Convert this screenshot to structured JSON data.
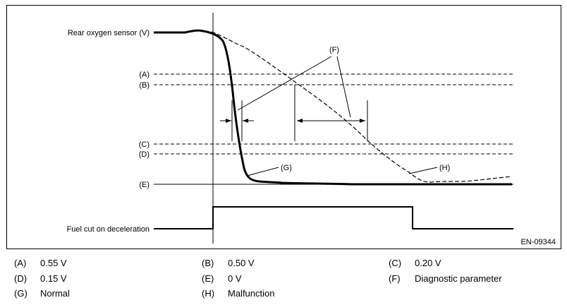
{
  "diagram": {
    "signal_labels": {
      "rear_o2": "Rear oxygen sensor (V)",
      "fuel_cut": "Fuel cut on deceleration"
    },
    "level_labels": [
      "(A)",
      "(B)",
      "(C)",
      "(D)",
      "(E)"
    ],
    "callouts": {
      "f": "(F)",
      "g": "(G)",
      "h": "(H)"
    },
    "figure_code": "EN-09344"
  },
  "legend": [
    {
      "key": "(A)",
      "value": "0.55 V"
    },
    {
      "key": "(B)",
      "value": "0.50 V"
    },
    {
      "key": "(C)",
      "value": "0.20 V"
    },
    {
      "key": "(D)",
      "value": "0.15 V"
    },
    {
      "key": "(E)",
      "value": "0 V"
    },
    {
      "key": "(F)",
      "value": "Diagnostic parameter"
    },
    {
      "key": "(G)",
      "value": "Normal"
    },
    {
      "key": "(H)",
      "value": "Malfunction"
    }
  ]
}
